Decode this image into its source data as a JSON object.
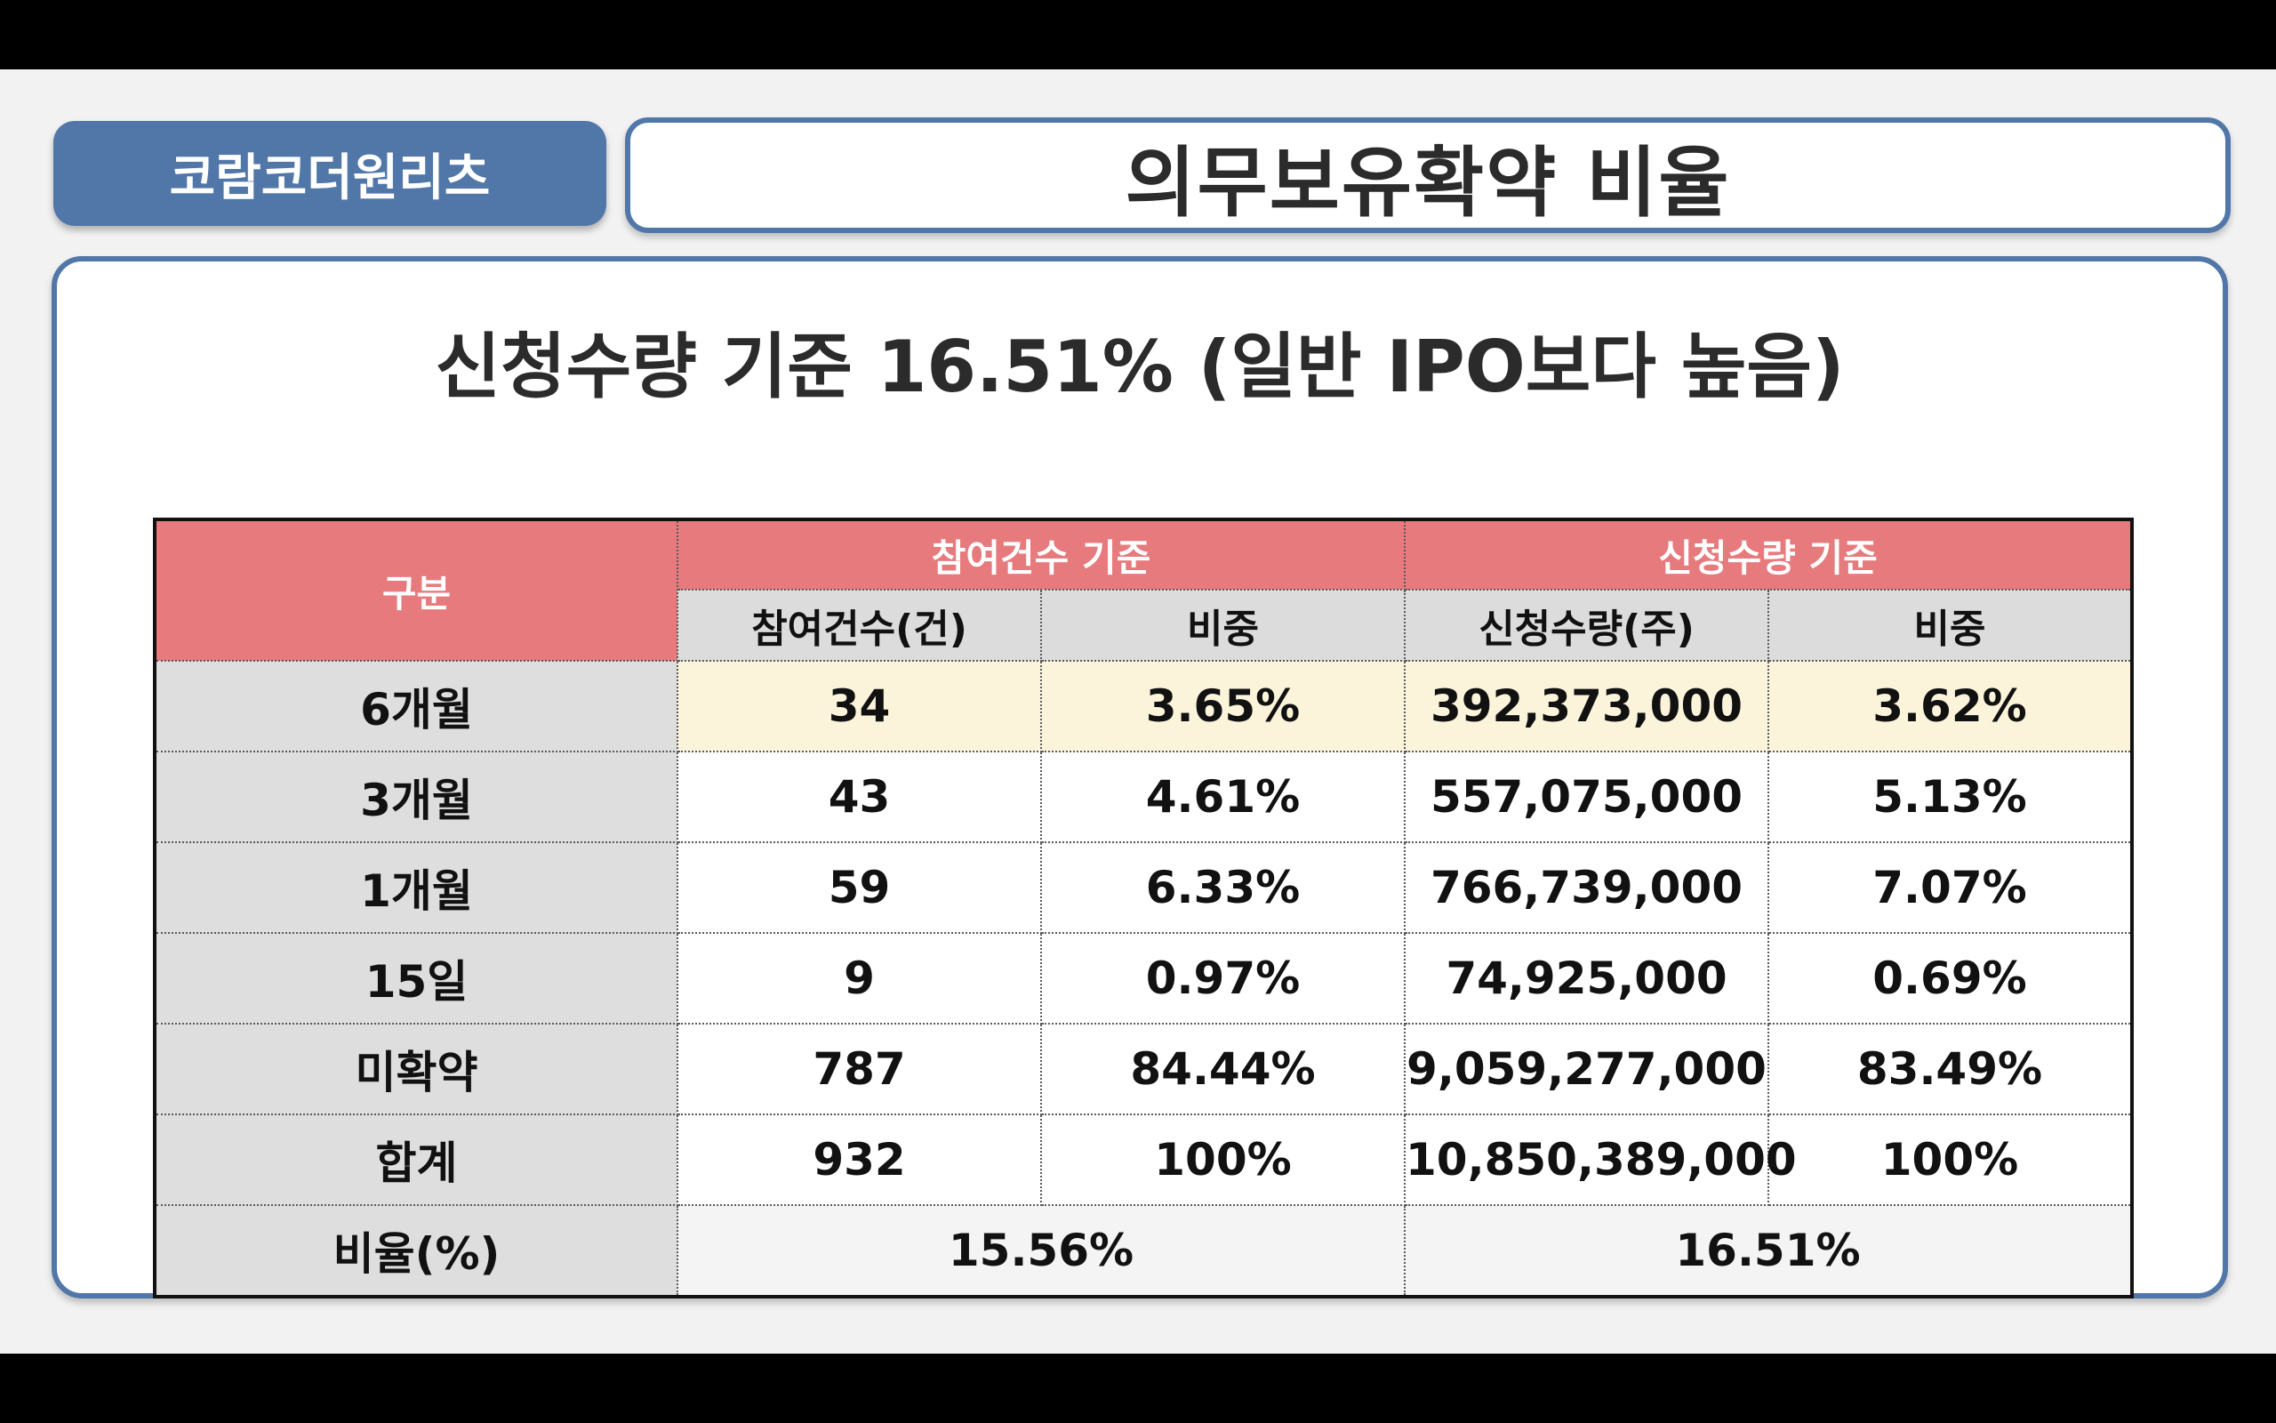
{
  "company_tag": "코람코더원리츠",
  "slide_title": "의무보유확약 비율",
  "subtitle": "신청수량 기준 16.51% (일반 IPO보다 높음)",
  "table": {
    "col_category": "구분",
    "group_participation": "참여건수 기준",
    "group_quantity": "신청수량 기준",
    "sub_participation_count": "참여건수(건)",
    "sub_participation_ratio": "비중",
    "sub_quantity_count": "신청수량(주)",
    "sub_quantity_ratio": "비중",
    "rows": [
      {
        "label": "6개월",
        "count": "34",
        "count_ratio": "3.65%",
        "qty": "392,373,000",
        "qty_ratio": "3.62%"
      },
      {
        "label": "3개월",
        "count": "43",
        "count_ratio": "4.61%",
        "qty": "557,075,000",
        "qty_ratio": "5.13%"
      },
      {
        "label": "1개월",
        "count": "59",
        "count_ratio": "6.33%",
        "qty": "766,739,000",
        "qty_ratio": "7.07%"
      },
      {
        "label": "15일",
        "count": "9",
        "count_ratio": "0.97%",
        "qty": "74,925,000",
        "qty_ratio": "0.69%"
      },
      {
        "label": "미확약",
        "count": "787",
        "count_ratio": "84.44%",
        "qty": "9,059,277,000",
        "qty_ratio": "83.49%"
      },
      {
        "label": "합계",
        "count": "932",
        "count_ratio": "100%",
        "qty": "10,850,389,000",
        "qty_ratio": "100%"
      }
    ],
    "ratio_row": {
      "label": "비율(%)",
      "participation": "15.56%",
      "quantity": "16.51%"
    }
  },
  "colors": {
    "accent_blue": "#5177a9",
    "header_red": "#e77a7d",
    "highlight_row": "#fbf3da"
  }
}
